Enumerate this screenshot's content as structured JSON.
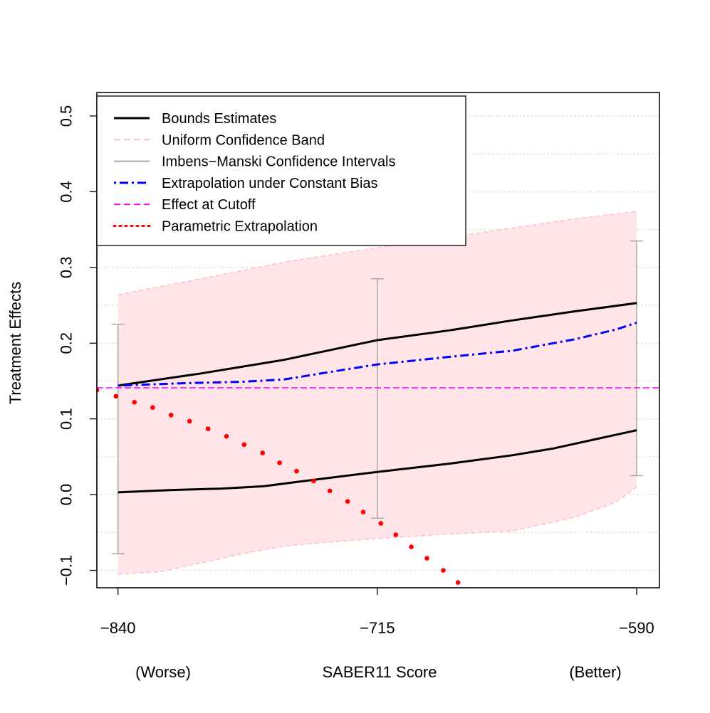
{
  "chart_data": {
    "type": "line",
    "title": "",
    "xlabel": "SABER11 Score",
    "xlabel_left": "(Worse)",
    "xlabel_right": "(Better)",
    "ylabel": "Treatment Effects",
    "xlim": [
      -850.2,
      -579
    ],
    "ylim": [
      -0.123,
      0.531
    ],
    "xticks": [
      -840,
      -715,
      -590
    ],
    "xtick_labels": [
      "−840",
      "−715",
      "−590"
    ],
    "yticks": [
      -0.1,
      0.0,
      0.1,
      0.2,
      0.3,
      0.4,
      0.5
    ],
    "ytick_labels": [
      "−0.1",
      "0.0",
      "0.1",
      "0.2",
      "0.3",
      "0.4",
      "0.5"
    ],
    "grid": {
      "horizontal_dotted_every": 0.05
    },
    "legend_placement": "top-left",
    "legend": [
      {
        "label": "Bounds Estimates",
        "color": "#000000",
        "style": "solid"
      },
      {
        "label": "Uniform Confidence Band",
        "color": "#ffc0cb",
        "style": "dashed"
      },
      {
        "label": "Imbens−Manski Confidence Intervals",
        "color": "#a8a8a8",
        "style": "solid"
      },
      {
        "label": "Extrapolation under Constant Bias",
        "color": "#0000ff",
        "style": "dotdash"
      },
      {
        "label": "Effect at Cutoff",
        "color": "#ff00ff",
        "style": "dashed"
      },
      {
        "label": "Parametric Extrapolation",
        "color": "#ff0000",
        "style": "dotted"
      }
    ],
    "band_fill": "#ffe4e8",
    "band_upper": {
      "x": [
        -840,
        -800,
        -760,
        -715,
        -680,
        -650,
        -620,
        -590
      ],
      "y": [
        0.264,
        0.285,
        0.307,
        0.326,
        0.34,
        0.352,
        0.364,
        0.374
      ]
    },
    "band_lower": {
      "x": [
        -840,
        -820,
        -800,
        -780,
        -760,
        -740,
        -715,
        -680,
        -650,
        -620,
        -600,
        -590
      ],
      "y": [
        -0.105,
        -0.102,
        -0.09,
        -0.078,
        -0.068,
        -0.063,
        -0.058,
        -0.052,
        -0.048,
        -0.03,
        -0.01,
        0.01
      ]
    },
    "upper_bound": {
      "x": [
        -840,
        -800,
        -760,
        -715,
        -680,
        -650,
        -620,
        -590
      ],
      "y": [
        0.144,
        0.16,
        0.178,
        0.204,
        0.217,
        0.23,
        0.242,
        0.253
      ]
    },
    "lower_bound": {
      "x": [
        -840,
        -815,
        -790,
        -770,
        -750,
        -715,
        -680,
        -650,
        -630,
        -610,
        -590
      ],
      "y": [
        0.003,
        0.006,
        0.008,
        0.011,
        0.018,
        0.03,
        0.041,
        0.052,
        0.061,
        0.073,
        0.085
      ]
    },
    "constant_bias": {
      "x": [
        -840,
        -810,
        -780,
        -760,
        -740,
        -715,
        -680,
        -650,
        -620,
        -600,
        -590
      ],
      "y": [
        0.144,
        0.147,
        0.149,
        0.152,
        0.161,
        0.172,
        0.182,
        0.19,
        0.205,
        0.218,
        0.227
      ]
    },
    "effect_at_cutoff": 0.141,
    "im_intervals": [
      {
        "x": -840,
        "low": -0.078,
        "high": 0.225
      },
      {
        "x": -715,
        "low": -0.031,
        "high": 0.285
      },
      {
        "x": -590,
        "low": 0.025,
        "high": 0.335
      }
    ],
    "parametric": {
      "x": [
        -850.2,
        -841,
        -832.1,
        -823.3,
        -814.4,
        -805.5,
        -796.6,
        -787.7,
        -779.2,
        -770.3,
        -762.1,
        -753.9,
        -745.7,
        -737.9,
        -729.3,
        -721.8,
        -713.3,
        -706.1,
        -698.6,
        -691.1,
        -683.2,
        -676.1
      ],
      "y": [
        0.138,
        0.13,
        0.122,
        0.115,
        0.105,
        0.097,
        0.087,
        0.077,
        0.066,
        0.055,
        0.042,
        0.031,
        0.018,
        0.005,
        -0.009,
        -0.023,
        -0.038,
        -0.053,
        -0.069,
        -0.084,
        -0.1,
        -0.116
      ]
    }
  }
}
